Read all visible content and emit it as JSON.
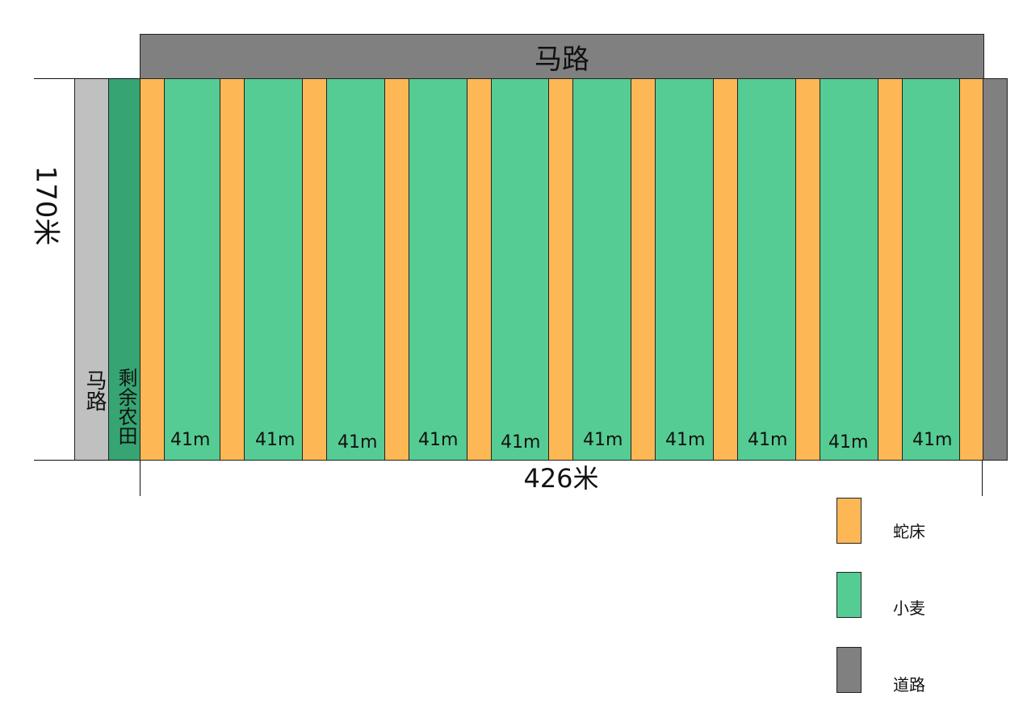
{
  "diagram": {
    "top_road_label": "马路",
    "left_road_label": "马路",
    "remaining_field_label": "剩余农田",
    "height_label": "170米",
    "width_label": "426米",
    "wheat_strip_labels": [
      "41m",
      "41m",
      "41m",
      "41m",
      "41m",
      "41m",
      "41m",
      "41m",
      "41m",
      "41m"
    ]
  },
  "legend": {
    "items": [
      {
        "label": "蛇床",
        "color": "#FDB855"
      },
      {
        "label": "小麦",
        "color": "#55CC94"
      },
      {
        "label": "道路",
        "color": "#808080"
      }
    ]
  },
  "colors": {
    "snake_bed": "#FDB855",
    "wheat": "#55CC94",
    "road": "#808080",
    "left_road": "#C0C0C0",
    "remaining_field": "#36A573"
  }
}
